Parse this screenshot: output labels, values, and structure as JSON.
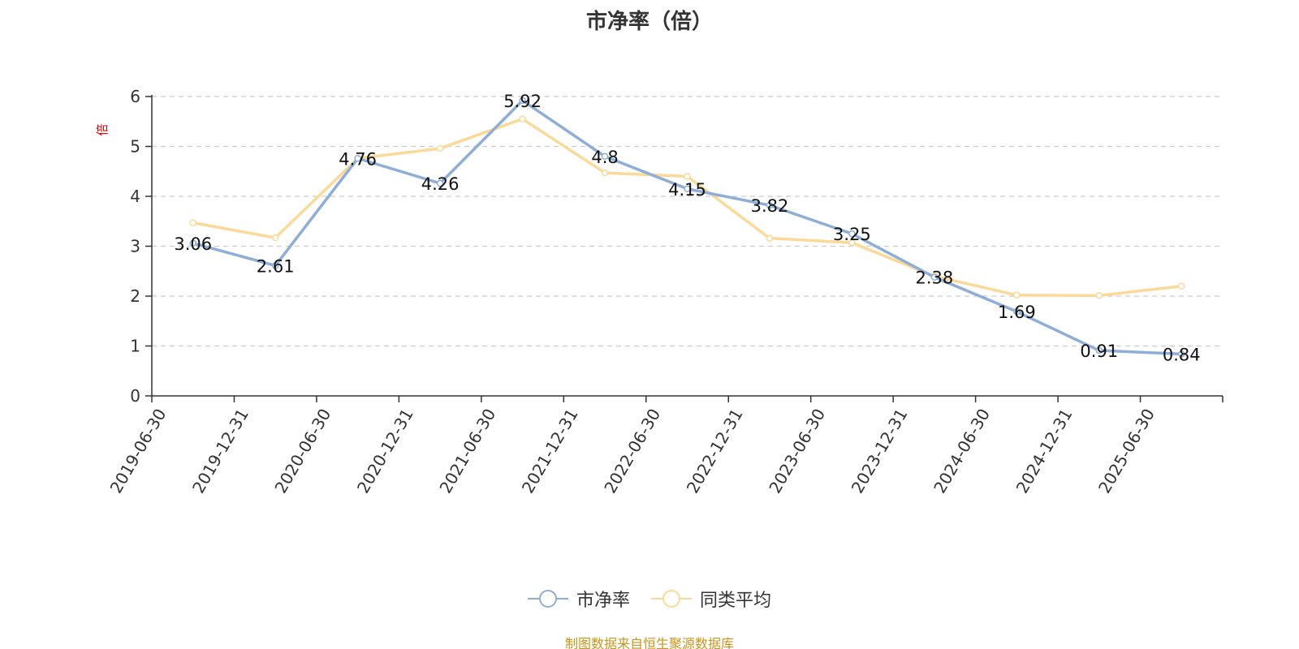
{
  "chart_data": {
    "type": "line",
    "title": "市净率（倍）",
    "ylabel": "倍",
    "categories": [
      "2019-06-30",
      "2019-12-31",
      "2020-06-30",
      "2020-12-31",
      "2021-06-30",
      "2021-12-31",
      "2022-06-30",
      "2022-12-31",
      "2023-06-30",
      "2023-12-31",
      "2024-06-30",
      "2024-12-31",
      "2025-06-30"
    ],
    "ylim": [
      0,
      6
    ],
    "yticks": [
      "0",
      "1",
      "2",
      "3",
      "4",
      "5",
      "6"
    ],
    "grid": true,
    "legend_position": "bottom",
    "series": [
      {
        "name": "市净率",
        "color": "#8eaed8",
        "values": [
          3.06,
          2.61,
          4.76,
          4.26,
          5.92,
          4.8,
          4.15,
          3.82,
          3.25,
          2.38,
          1.69,
          0.91,
          0.84
        ],
        "labels": [
          "3.06",
          "2.61",
          "4.76",
          "4.26",
          "5.92",
          "4.8",
          "4.15",
          "3.82",
          "3.25",
          "2.38",
          "1.69",
          "0.91",
          "0.84"
        ]
      },
      {
        "name": "同类平均",
        "color": "#fbd999",
        "values": [
          3.47,
          3.17,
          4.76,
          4.96,
          5.55,
          4.47,
          4.4,
          3.16,
          3.07,
          2.4,
          2.02,
          2.01,
          2.2
        ]
      }
    ],
    "source": "制图数据来自恒生聚源数据库"
  }
}
